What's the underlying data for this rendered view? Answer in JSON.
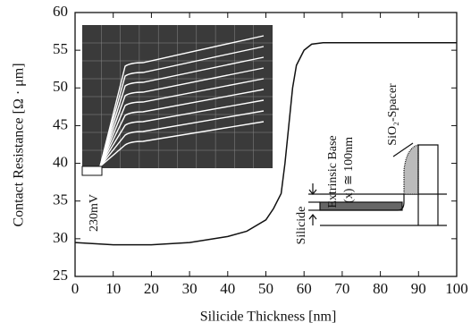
{
  "chart_data": {
    "type": "line",
    "x_label": "Silicide Thickness [nm]",
    "y_label": "Contact Resistance [Ω · μm]",
    "x": [
      0,
      10,
      20,
      30,
      40,
      45,
      50,
      52,
      54,
      55,
      56,
      57,
      58,
      60,
      62,
      65,
      70,
      80,
      90,
      100
    ],
    "values": [
      29.5,
      29.2,
      29.2,
      29.5,
      30.3,
      31,
      32.5,
      34,
      36,
      40,
      45,
      50,
      53,
      55,
      55.8,
      56,
      56,
      56,
      56,
      56
    ],
    "color": "#111111",
    "xlim": [
      0,
      100
    ],
    "xticks": [
      0,
      10,
      20,
      30,
      40,
      50,
      60,
      70,
      80,
      90,
      100
    ],
    "ylim": [
      25,
      60
    ],
    "yticks": [
      25,
      30,
      35,
      40,
      45,
      50,
      55,
      60
    ],
    "grid": false,
    "annotations": [
      "230mV",
      "Extrinsic Base",
      "(x) ≅ 100nm",
      "SiO₂-Spacer",
      "Silicide"
    ]
  }
}
